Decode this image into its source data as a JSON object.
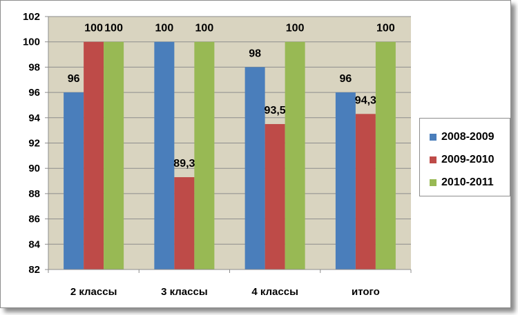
{
  "chart_data": {
    "type": "bar",
    "categories": [
      "2 классы",
      "3 классы",
      "4 классы",
      "итого"
    ],
    "series": [
      {
        "name": "2008-2009",
        "values": [
          96,
          100,
          98,
          96
        ],
        "color": "#4a7ebb",
        "labels": [
          "96",
          "100",
          "98",
          "96"
        ]
      },
      {
        "name": "2009-2010",
        "values": [
          100,
          89.3,
          93.5,
          94.3
        ],
        "color": "#be4b48",
        "labels": [
          "100",
          "89,3",
          "93,5",
          "94,3"
        ]
      },
      {
        "name": "2010-2011",
        "values": [
          100,
          100,
          100,
          100
        ],
        "color": "#98b954",
        "labels": [
          "100",
          "100",
          "100",
          "100"
        ]
      }
    ],
    "yticks": [
      "82",
      "84",
      "86",
      "88",
      "90",
      "92",
      "94",
      "96",
      "98",
      "100",
      "102"
    ],
    "ylim": [
      82,
      102
    ],
    "ytick_step": 2,
    "grid": true,
    "plot_background": "#d9d4c0",
    "legend_position": "right"
  }
}
